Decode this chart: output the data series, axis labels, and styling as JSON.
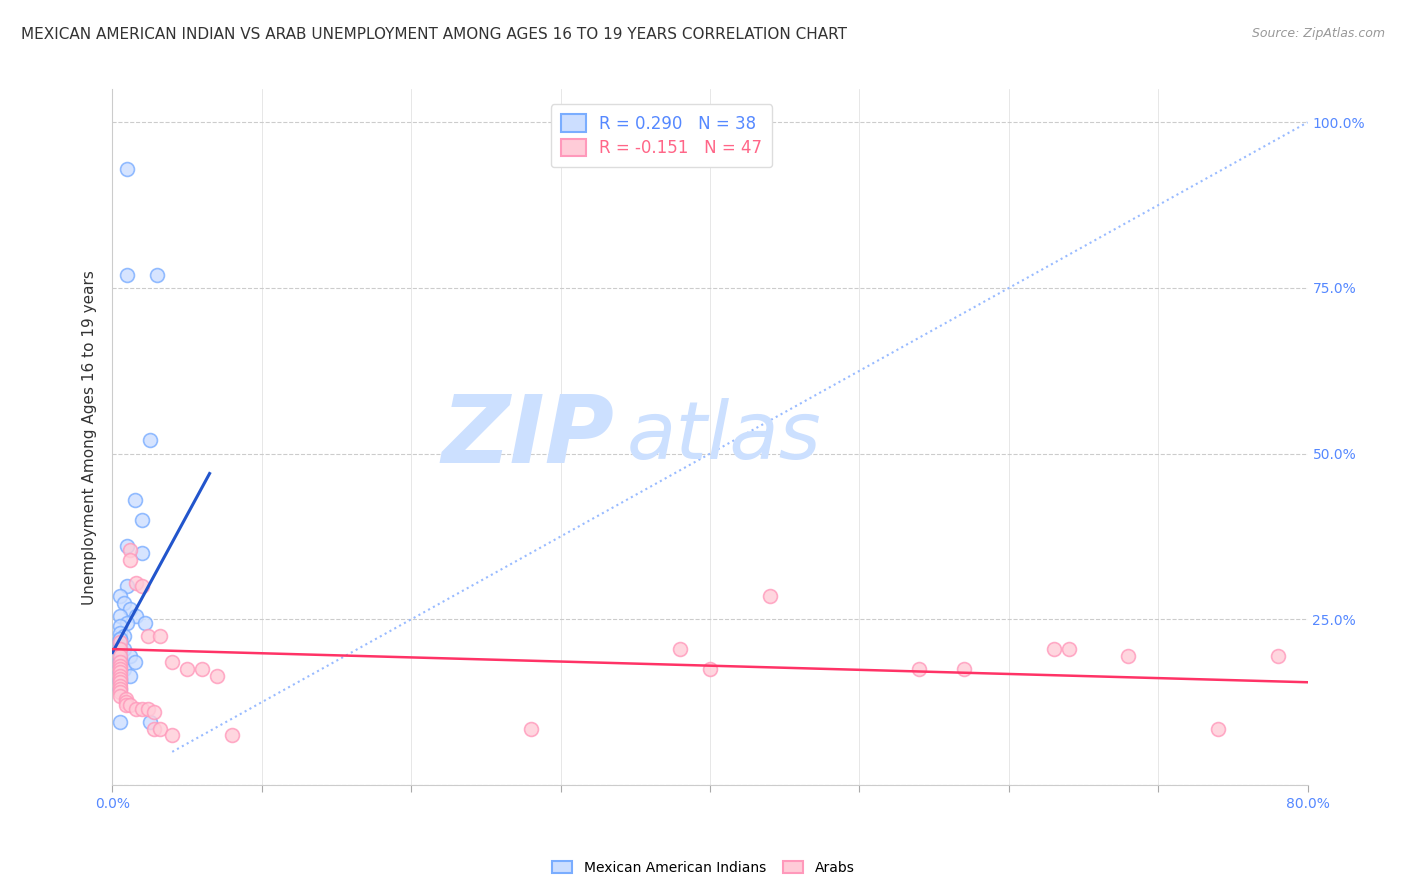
{
  "title": "MEXICAN AMERICAN INDIAN VS ARAB UNEMPLOYMENT AMONG AGES 16 TO 19 YEARS CORRELATION CHART",
  "source": "Source: ZipAtlas.com",
  "ylabel": "Unemployment Among Ages 16 to 19 years",
  "xlim": [
    0.0,
    0.8
  ],
  "ylim": [
    0.0,
    1.05
  ],
  "x_ticks": [
    0.0,
    0.1,
    0.2,
    0.3,
    0.4,
    0.5,
    0.6,
    0.7,
    0.8
  ],
  "y_ticks": [
    0.0,
    0.25,
    0.5,
    0.75,
    1.0
  ],
  "watermark_zip": "ZIP",
  "watermark_atlas": "atlas",
  "legend_entries": [
    {
      "label": "R = 0.290   N = 38",
      "color": "#5588ff"
    },
    {
      "label": "R = -0.151   N = 47",
      "color": "#ff6688"
    }
  ],
  "blue_scatter": [
    [
      0.01,
      0.93
    ],
    [
      0.01,
      0.77
    ],
    [
      0.03,
      0.77
    ],
    [
      0.025,
      0.52
    ],
    [
      0.015,
      0.43
    ],
    [
      0.02,
      0.4
    ],
    [
      0.01,
      0.36
    ],
    [
      0.02,
      0.35
    ],
    [
      0.01,
      0.3
    ],
    [
      0.005,
      0.285
    ],
    [
      0.008,
      0.275
    ],
    [
      0.012,
      0.265
    ],
    [
      0.016,
      0.255
    ],
    [
      0.005,
      0.255
    ],
    [
      0.01,
      0.245
    ],
    [
      0.022,
      0.245
    ],
    [
      0.005,
      0.24
    ],
    [
      0.005,
      0.23
    ],
    [
      0.008,
      0.225
    ],
    [
      0.005,
      0.22
    ],
    [
      0.005,
      0.215
    ],
    [
      0.005,
      0.21
    ],
    [
      0.008,
      0.205
    ],
    [
      0.005,
      0.2
    ],
    [
      0.012,
      0.195
    ],
    [
      0.005,
      0.19
    ],
    [
      0.005,
      0.185
    ],
    [
      0.005,
      0.18
    ],
    [
      0.008,
      0.175
    ],
    [
      0.005,
      0.17
    ],
    [
      0.012,
      0.165
    ],
    [
      0.005,
      0.16
    ],
    [
      0.005,
      0.155
    ],
    [
      0.005,
      0.095
    ],
    [
      0.025,
      0.095
    ],
    [
      0.005,
      0.22
    ],
    [
      0.015,
      0.185
    ],
    [
      0.005,
      0.145
    ]
  ],
  "pink_scatter": [
    [
      0.005,
      0.215
    ],
    [
      0.005,
      0.205
    ],
    [
      0.005,
      0.195
    ],
    [
      0.005,
      0.185
    ],
    [
      0.005,
      0.18
    ],
    [
      0.005,
      0.175
    ],
    [
      0.005,
      0.17
    ],
    [
      0.005,
      0.165
    ],
    [
      0.005,
      0.16
    ],
    [
      0.005,
      0.155
    ],
    [
      0.005,
      0.15
    ],
    [
      0.005,
      0.145
    ],
    [
      0.005,
      0.14
    ],
    [
      0.005,
      0.135
    ],
    [
      0.009,
      0.13
    ],
    [
      0.009,
      0.125
    ],
    [
      0.009,
      0.12
    ],
    [
      0.012,
      0.12
    ],
    [
      0.012,
      0.355
    ],
    [
      0.012,
      0.34
    ],
    [
      0.016,
      0.115
    ],
    [
      0.016,
      0.305
    ],
    [
      0.02,
      0.115
    ],
    [
      0.02,
      0.3
    ],
    [
      0.024,
      0.115
    ],
    [
      0.024,
      0.225
    ],
    [
      0.028,
      0.11
    ],
    [
      0.028,
      0.085
    ],
    [
      0.032,
      0.225
    ],
    [
      0.032,
      0.085
    ],
    [
      0.04,
      0.185
    ],
    [
      0.04,
      0.075
    ],
    [
      0.05,
      0.175
    ],
    [
      0.06,
      0.175
    ],
    [
      0.07,
      0.165
    ],
    [
      0.08,
      0.075
    ],
    [
      0.38,
      0.205
    ],
    [
      0.4,
      0.175
    ],
    [
      0.44,
      0.285
    ],
    [
      0.54,
      0.175
    ],
    [
      0.57,
      0.175
    ],
    [
      0.63,
      0.205
    ],
    [
      0.64,
      0.205
    ],
    [
      0.68,
      0.195
    ],
    [
      0.74,
      0.085
    ],
    [
      0.78,
      0.195
    ],
    [
      0.28,
      0.085
    ]
  ],
  "blue_line": {
    "x": [
      0.0,
      0.065
    ],
    "y": [
      0.2,
      0.47
    ]
  },
  "pink_line": {
    "x": [
      0.0,
      0.8
    ],
    "y": [
      0.205,
      0.155
    ]
  },
  "diagonal_line": {
    "x": [
      0.04,
      0.8
    ],
    "y": [
      0.05,
      1.0
    ]
  },
  "blue_color": "#7aadff",
  "pink_color": "#ff99bb",
  "blue_line_color": "#2255cc",
  "pink_line_color": "#ff3366",
  "diagonal_color": "#99bbff",
  "grid_color": "#cccccc",
  "background_color": "#ffffff",
  "title_fontsize": 11,
  "axis_label_fontsize": 11,
  "tick_fontsize": 10,
  "marker_size": 100
}
